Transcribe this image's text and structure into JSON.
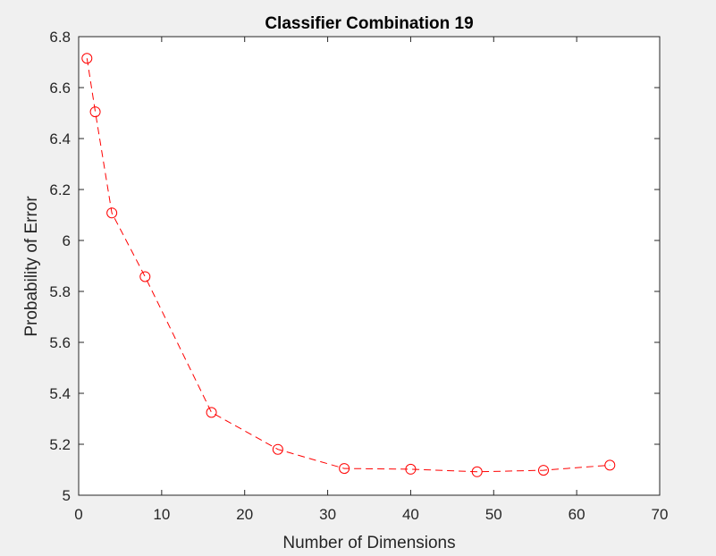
{
  "chart_data": {
    "type": "line",
    "title": "Classifier Combination 19",
    "xlabel": "Number of Dimensions",
    "ylabel": "Probability of Error",
    "xlim": [
      0,
      70
    ],
    "ylim": [
      5,
      6.8
    ],
    "xticks": [
      "0",
      "10",
      "20",
      "30",
      "40",
      "50",
      "60",
      "70"
    ],
    "yticks": [
      "5",
      "5.2",
      "5.4",
      "5.6",
      "5.8",
      "6",
      "6.2",
      "6.4",
      "6.6",
      "6.8"
    ],
    "grid": false,
    "series": [
      {
        "color": "#ff0000",
        "line_style": "dashed",
        "marker": "circle",
        "x": [
          1,
          2,
          4,
          8,
          16,
          24,
          32,
          40,
          48,
          56,
          64
        ],
        "y": [
          6.715,
          6.505,
          6.108,
          5.858,
          5.325,
          5.18,
          5.105,
          5.102,
          5.092,
          5.098,
          5.118
        ]
      }
    ]
  }
}
